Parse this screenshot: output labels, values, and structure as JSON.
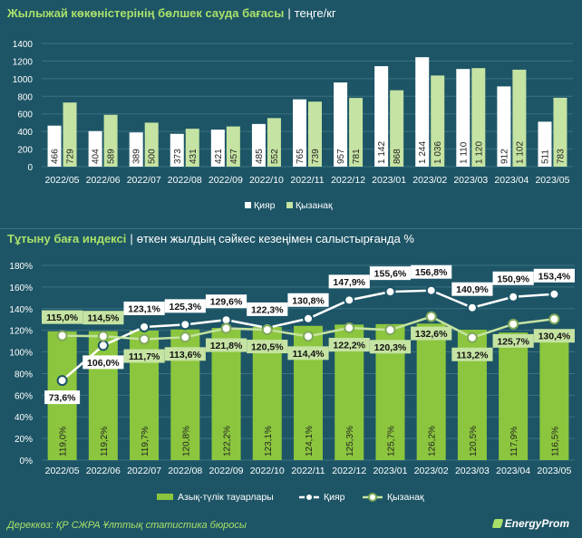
{
  "chart_data": [
    {
      "type": "bar",
      "title": "Жылыжай көкөністерінің бөлшек сауда бағасы",
      "subtitle": "теңге/кг",
      "categories": [
        "2022/05",
        "2022/06",
        "2022/07",
        "2022/08",
        "2022/09",
        "2022/10",
        "2022/11",
        "2022/12",
        "2023/01",
        "2023/02",
        "2023/03",
        "2023/04",
        "2023/05"
      ],
      "ylim": [
        0,
        1400
      ],
      "yticks": [
        "0",
        "200",
        "400",
        "600",
        "800",
        "1000",
        "1200",
        "1400"
      ],
      "ytick_values": [
        0,
        200,
        400,
        600,
        800,
        1000,
        1200,
        1400
      ],
      "legend_position": "bottom",
      "grid": true,
      "series": [
        {
          "name": "Қияр",
          "color": "#ffffff",
          "values": [
            466,
            404,
            389,
            373,
            421,
            485,
            765,
            957,
            1142,
            1244,
            1110,
            912,
            511
          ],
          "labels": [
            "466",
            "404",
            "389",
            "373",
            "421",
            "485",
            "765",
            "957",
            "1 142",
            "1 244",
            "1 110",
            "912",
            "511"
          ]
        },
        {
          "name": "Қызанақ",
          "color": "#c5e3a2",
          "values": [
            729,
            589,
            500,
            431,
            457,
            552,
            739,
            781,
            868,
            1036,
            1120,
            1102,
            783
          ],
          "labels": [
            "729",
            "589",
            "500",
            "431",
            "457",
            "552",
            "739",
            "781",
            "868",
            "1 036",
            "1 120",
            "1 102",
            "783"
          ]
        }
      ]
    },
    {
      "type": "bar+line",
      "title": "Тұтыну баға индексі",
      "subtitle": "өткен жылдың сәйкес кезеңімен салыстырғанда %",
      "categories": [
        "2022/05",
        "2022/06",
        "2022/07",
        "2022/08",
        "2022/09",
        "2022/10",
        "2022/11",
        "2022/12",
        "2023/01",
        "2023/02",
        "2023/03",
        "2023/04",
        "2023/05"
      ],
      "ylim": [
        0,
        180
      ],
      "yticks": [
        "0%",
        "20%",
        "40%",
        "60%",
        "80%",
        "100%",
        "120%",
        "140%",
        "160%",
        "180%"
      ],
      "ytick_values": [
        0,
        20,
        40,
        60,
        80,
        100,
        120,
        140,
        160,
        180
      ],
      "legend_position": "bottom",
      "grid": true,
      "bars": {
        "name": "Азық-түлік тауарлары",
        "color": "#8cc63e",
        "values": [
          119.0,
          119.2,
          119.7,
          120.8,
          122.2,
          123.1,
          124.1,
          125.3,
          125.7,
          126.2,
          120.5,
          117.9,
          116.5
        ],
        "labels": [
          "119,0%",
          "119,2%",
          "119,7%",
          "120,8%",
          "122,2%",
          "123,1%",
          "124,1%",
          "125,3%",
          "125,7%",
          "126,2%",
          "120,5%",
          "117,9%",
          "116,5%"
        ]
      },
      "lines": [
        {
          "name": "Қияр",
          "color": "#ffffff",
          "values": [
            73.6,
            106.0,
            123.1,
            125.3,
            129.6,
            122.3,
            130.8,
            147.9,
            155.6,
            156.8,
            140.9,
            150.9,
            153.4
          ],
          "labels": [
            "73,6%",
            "106,0%",
            "123,1%",
            "125,3%",
            "129,6%",
            "122,3%",
            "130,8%",
            "147,9%",
            "155,6%",
            "156,8%",
            "140,9%",
            "150,9%",
            "153,4%"
          ]
        },
        {
          "name": "Қызанақ",
          "color": "#c5e3a2",
          "values": [
            115.0,
            114.5,
            111.7,
            113.6,
            121.8,
            120.5,
            114.4,
            122.2,
            120.3,
            132.6,
            113.2,
            125.7,
            130.4
          ],
          "labels": [
            "115,0%",
            "114,5%",
            "111,7%",
            "113,6%",
            "121,8%",
            "120,5%",
            "114,4%",
            "122,2%",
            "120,3%",
            "132,6%",
            "113,2%",
            "125,7%",
            "130,4%"
          ]
        }
      ]
    }
  ],
  "footer": {
    "source": "Дереккөз: ҚР СЖРА Ұлттық статистика бюросы",
    "logo": "EnergyProm"
  },
  "colors": {
    "background": "#1d5566",
    "accent": "#a9e06a",
    "grid": "#3d7282"
  }
}
